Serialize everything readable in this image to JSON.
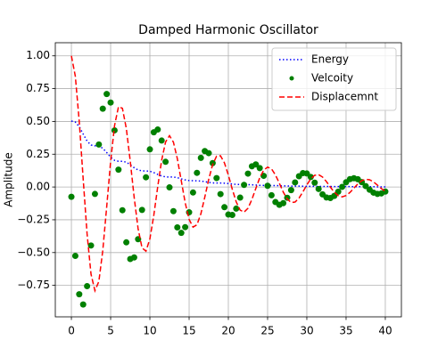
{
  "chart_data": {
    "type": "line",
    "title": "Damped Harmonic Oscillator",
    "ylabel": "Amplitude",
    "x": [
      0,
      0.5,
      1,
      1.5,
      2,
      2.5,
      3,
      3.5,
      4,
      4.5,
      5,
      5.5,
      6,
      6.5,
      7,
      7.5,
      8,
      8.5,
      9,
      9.5,
      10,
      10.5,
      11,
      11.5,
      12,
      12.5,
      13,
      13.5,
      14,
      14.5,
      15,
      15.5,
      16,
      16.5,
      17,
      17.5,
      18,
      18.5,
      19,
      19.5,
      20,
      20.5,
      21,
      21.5,
      22,
      22.5,
      23,
      23.5,
      24,
      24.5,
      25,
      25.5,
      26,
      26.5,
      27,
      27.5,
      28,
      28.5,
      29,
      29.5,
      30,
      30.5,
      31,
      31.5,
      32,
      32.5,
      33,
      33.5,
      34,
      34.5,
      35,
      35.5,
      36,
      36.5,
      37,
      37.5,
      38,
      38.5,
      39,
      39.5,
      40
    ],
    "series": [
      {
        "name": "Energy",
        "color": "#0000ff",
        "kind": "line",
        "linestyle": "dotted",
        "values": [
          0.503,
          0.495,
          0.46,
          0.404,
          0.35,
          0.32,
          0.314,
          0.312,
          0.295,
          0.263,
          0.227,
          0.203,
          0.196,
          0.196,
          0.189,
          0.17,
          0.147,
          0.13,
          0.123,
          0.122,
          0.12,
          0.11,
          0.096,
          0.084,
          0.077,
          0.076,
          0.076,
          0.071,
          0.062,
          0.054,
          0.049,
          0.048,
          0.047,
          0.045,
          0.041,
          0.035,
          0.031,
          0.03,
          0.03,
          0.029,
          0.026,
          0.023,
          0.02,
          0.019,
          0.019,
          0.018,
          0.017,
          0.015,
          0.013,
          0.012,
          0.012,
          0.011,
          0.011,
          0.01,
          0.008,
          0.008,
          0.007,
          0.007,
          0.007,
          0.006,
          0.005,
          0.005,
          0.005,
          0.005,
          0.004,
          0.004,
          0.004,
          0.003,
          0.003,
          0.003,
          0.003,
          0.003,
          0.002,
          0.002,
          0.002,
          0.002,
          0.002,
          0.002,
          0.001,
          0.001,
          0.001
        ]
      },
      {
        "name": "Velcoity",
        "color": "#008000",
        "kind": "scatter",
        "values": [
          -0.075,
          -0.525,
          -0.818,
          -0.896,
          -0.756,
          -0.446,
          -0.053,
          0.324,
          0.597,
          0.709,
          0.644,
          0.432,
          0.132,
          -0.177,
          -0.422,
          -0.549,
          -0.537,
          -0.398,
          -0.175,
          0.074,
          0.287,
          0.417,
          0.438,
          0.354,
          0.192,
          -0.003,
          -0.184,
          -0.308,
          -0.35,
          -0.306,
          -0.193,
          -0.042,
          0.108,
          0.222,
          0.274,
          0.258,
          0.182,
          0.068,
          -0.054,
          -0.154,
          -0.21,
          -0.213,
          -0.165,
          -0.081,
          0.016,
          0.102,
          0.158,
          0.172,
          0.144,
          0.085,
          0.009,
          -0.063,
          -0.115,
          -0.136,
          -0.123,
          -0.082,
          -0.024,
          0.035,
          0.082,
          0.106,
          0.103,
          0.076,
          0.033,
          -0.015,
          -0.056,
          -0.08,
          -0.084,
          -0.068,
          -0.036,
          0.001,
          0.036,
          0.06,
          0.067,
          0.059,
          0.037,
          0.007,
          -0.021,
          -0.043,
          -0.053,
          -0.049,
          -0.035
        ]
      },
      {
        "name": "Displacemnt",
        "color": "#ff0000",
        "kind": "line",
        "linestyle": "dashed",
        "values": [
          1.0,
          0.845,
          0.501,
          0.063,
          -0.358,
          -0.664,
          -0.791,
          -0.72,
          -0.484,
          -0.15,
          0.195,
          0.469,
          0.612,
          0.6,
          0.446,
          0.197,
          -0.08,
          -0.318,
          -0.464,
          -0.489,
          -0.396,
          -0.216,
          0.002,
          0.204,
          0.343,
          0.391,
          0.342,
          0.216,
          0.048,
          -0.12,
          -0.247,
          -0.306,
          -0.288,
          -0.204,
          -0.077,
          0.059,
          0.171,
          0.235,
          0.238,
          0.184,
          0.091,
          -0.017,
          -0.113,
          -0.176,
          -0.192,
          -0.162,
          -0.095,
          -0.011,
          0.07,
          0.128,
          0.152,
          0.138,
          0.092,
          0.028,
          -0.039,
          -0.091,
          -0.118,
          -0.115,
          -0.085,
          -0.037,
          0.016,
          0.062,
          0.089,
          0.094,
          0.076,
          0.041,
          -0.001,
          -0.04,
          -0.066,
          -0.075,
          -0.065,
          -0.041,
          -0.009,
          0.024,
          0.048,
          0.059,
          0.055,
          0.039,
          0.014,
          -0.012,
          -0.033
        ]
      }
    ],
    "xlim": [
      -2.05,
      42.05
    ],
    "xticks": [
      0,
      5,
      10,
      15,
      20,
      25,
      30,
      35,
      40
    ],
    "ylim": [
      -0.99,
      1.1
    ],
    "yticks": [
      {
        "value": -0.75,
        "label": "−0.75"
      },
      {
        "value": -0.5,
        "label": "−0.50"
      },
      {
        "value": -0.25,
        "label": "−0.25"
      },
      {
        "value": 0,
        "label": "0.00"
      },
      {
        "value": 0.25,
        "label": "0.25"
      },
      {
        "value": 0.5,
        "label": "0.50"
      },
      {
        "value": 0.75,
        "label": "0.75"
      },
      {
        "value": 1,
        "label": "1.00"
      }
    ],
    "grid": true,
    "legend": "upper right"
  }
}
